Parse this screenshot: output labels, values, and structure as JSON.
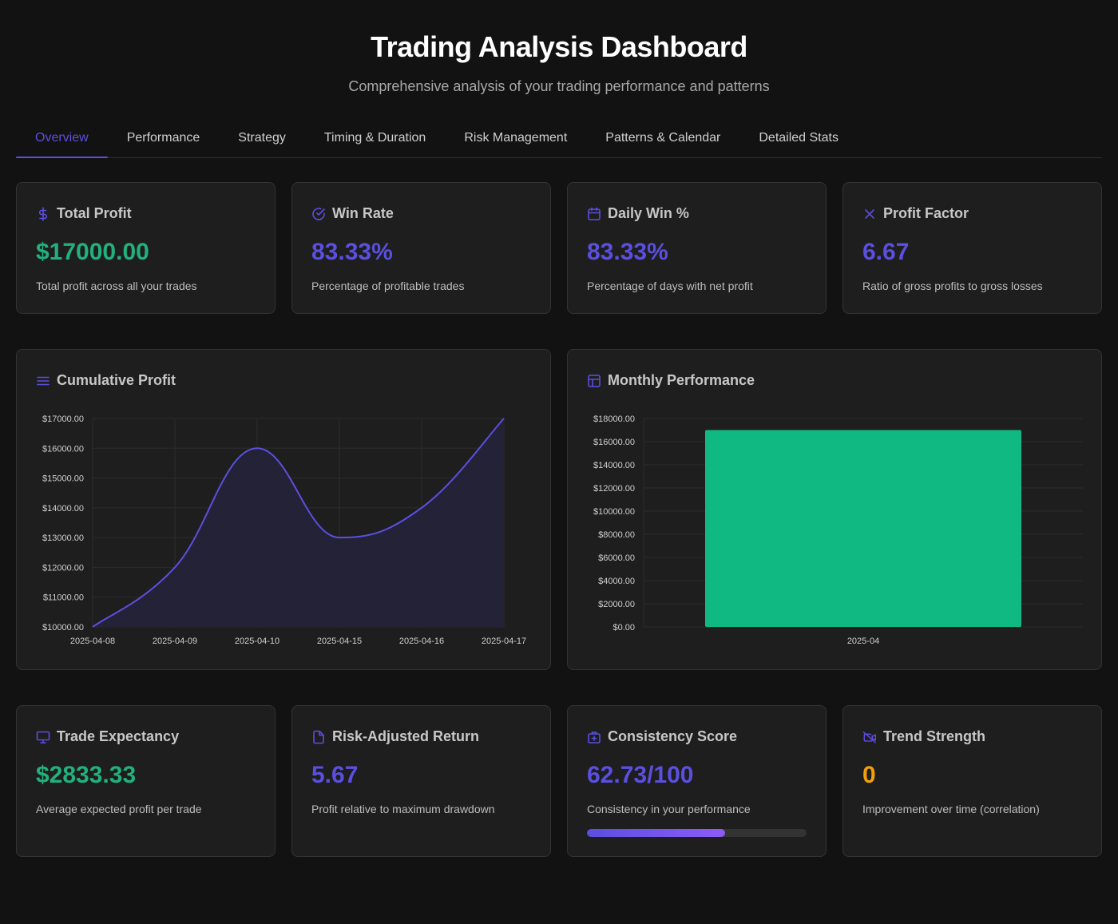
{
  "header": {
    "title": "Trading Analysis Dashboard",
    "subtitle": "Comprehensive analysis of your trading performance and patterns"
  },
  "tabs": [
    {
      "label": "Overview",
      "active": true
    },
    {
      "label": "Performance",
      "active": false
    },
    {
      "label": "Strategy",
      "active": false
    },
    {
      "label": "Timing & Duration",
      "active": false
    },
    {
      "label": "Risk Management",
      "active": false
    },
    {
      "label": "Patterns & Calendar",
      "active": false
    },
    {
      "label": "Detailed Stats",
      "active": false
    }
  ],
  "stats_top": [
    {
      "icon": "dollar-icon",
      "title": "Total Profit",
      "value": "$17000.00",
      "color": "#22b07d",
      "desc": "Total profit across all your trades"
    },
    {
      "icon": "check-circle-icon",
      "title": "Win Rate",
      "value": "83.33%",
      "color": "#5b4fe0",
      "desc": "Percentage of profitable trades"
    },
    {
      "icon": "calendar-icon",
      "title": "Daily Win %",
      "value": "83.33%",
      "color": "#5b4fe0",
      "desc": "Percentage of days with net profit"
    },
    {
      "icon": "x-icon",
      "title": "Profit Factor",
      "value": "6.67",
      "color": "#5b4fe0",
      "desc": "Ratio of gross profits to gross losses"
    }
  ],
  "stats_bottom": [
    {
      "icon": "monitor-icon",
      "title": "Trade Expectancy",
      "value": "$2833.33",
      "color": "#22b07d",
      "desc": "Average expected profit per trade"
    },
    {
      "icon": "file-icon",
      "title": "Risk-Adjusted Return",
      "value": "5.67",
      "color": "#5b4fe0",
      "desc": "Profit relative to maximum drawdown"
    },
    {
      "icon": "briefcase-plus-icon",
      "title": "Consistency Score",
      "value": "62.73/100",
      "color": "#5b4fe0",
      "desc": "Consistency in your performance",
      "progress": 0.6273
    },
    {
      "icon": "video-off-icon",
      "title": "Trend Strength",
      "value": "0",
      "color": "#f59e0b",
      "desc": "Improvement over time (correlation)"
    }
  ],
  "charts": {
    "cumulative_title": "Cumulative Profit",
    "monthly_title": "Monthly Performance"
  },
  "chart_data": [
    {
      "type": "area",
      "title": "Cumulative Profit",
      "categories": [
        "2025-04-08",
        "2025-04-09",
        "2025-04-10",
        "2025-04-15",
        "2025-04-16",
        "2025-04-17"
      ],
      "values": [
        10000,
        12000,
        16000,
        13000,
        14000,
        17000
      ],
      "y_ticks": [
        "$10000.00",
        "$11000.00",
        "$12000.00",
        "$13000.00",
        "$14000.00",
        "$15000.00",
        "$16000.00",
        "$17000.00"
      ],
      "ylim": [
        10000,
        17000
      ],
      "line_color": "#5b4fe0",
      "fill_color": "#232238",
      "grid": true
    },
    {
      "type": "bar",
      "title": "Monthly Performance",
      "categories": [
        "2025-04"
      ],
      "values": [
        17000
      ],
      "y_ticks": [
        "$0.00",
        "$2000.00",
        "$4000.00",
        "$6000.00",
        "$8000.00",
        "$10000.00",
        "$12000.00",
        "$14000.00",
        "$16000.00",
        "$18000.00"
      ],
      "ylim": [
        0,
        18000
      ],
      "bar_color": "#10b981",
      "grid": true
    }
  ]
}
